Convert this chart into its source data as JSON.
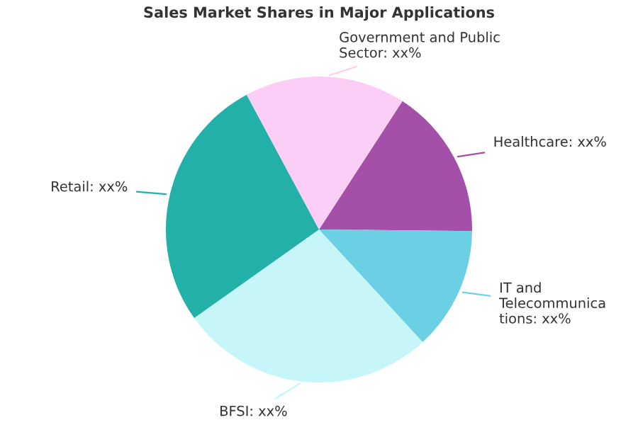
{
  "chart_data": {
    "type": "pie",
    "title": "Sales Market Shares in Major Applications",
    "categories": [
      "Healthcare: xx%",
      "IT and Telecommunications: xx%",
      "BFSI: xx%",
      "Retail: xx%",
      "Government and Public Sector: xx%"
    ],
    "values": [
      16,
      13,
      27,
      27,
      17
    ],
    "colors": [
      "#a44fa8",
      "#6cd0e4",
      "#c6f6f8",
      "#22b0a8",
      "#fccdf5"
    ]
  }
}
